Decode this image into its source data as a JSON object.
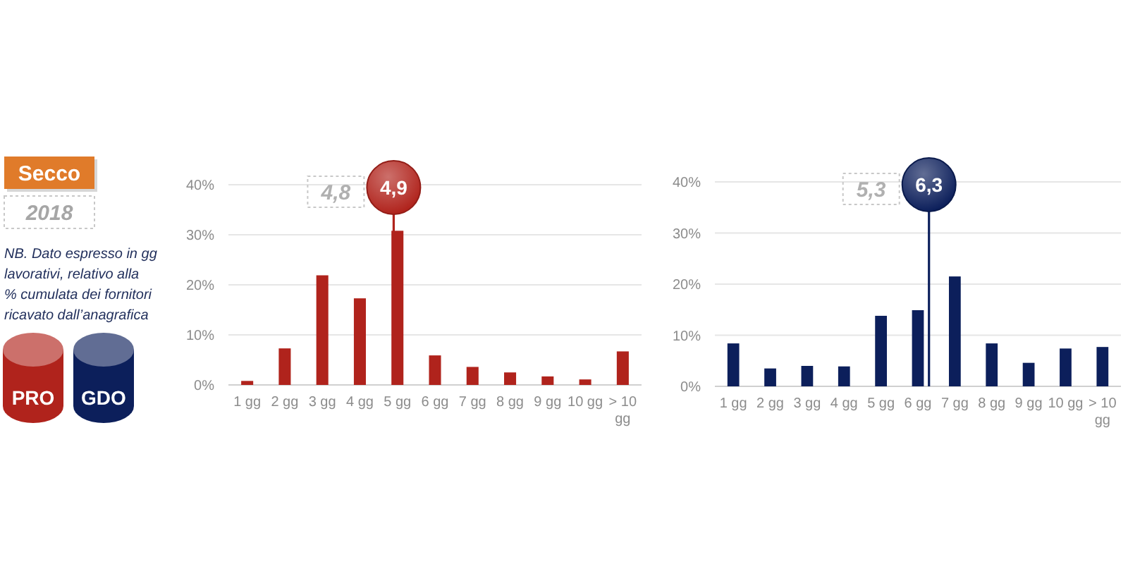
{
  "chart_data": [
    {
      "type": "other",
      "title": "Secco",
      "subtitle": "2018",
      "annotations": [
        "NB. Dato espresso in gg lavorativi, relativo alla % cumulata dei fornitori ricavato dall’anagrafica"
      ]
    },
    {
      "type": "bar",
      "x": [
        1,
        2,
        3,
        4,
        5,
        6,
        7,
        8,
        9,
        10,
        11
      ],
      "xlim": [
        0.5,
        11.5
      ],
      "xticks": [
        {
          "value": 1,
          "label": "1 gg"
        },
        {
          "value": 2,
          "label": "2 gg"
        },
        {
          "value": 3,
          "label": "3 gg"
        },
        {
          "value": 4,
          "label": "4 gg"
        },
        {
          "value": 5,
          "label": "5 gg"
        },
        {
          "value": 6,
          "label": "6 gg"
        },
        {
          "value": 7,
          "label": "7 gg"
        },
        {
          "value": 8,
          "label": "8 gg"
        },
        {
          "value": 9,
          "label": "9 gg"
        },
        {
          "value": 10,
          "label": "10 gg"
        },
        {
          "value": 11,
          "label": "> 10 gg"
        }
      ],
      "series": [
        {
          "name": "PRO",
          "color": "#b0231c",
          "values": [
            0.8,
            7.3,
            21.9,
            17.3,
            30.8,
            5.9,
            3.6,
            2.5,
            1.7,
            1.1,
            6.7
          ]
        }
      ],
      "ylim": [
        0,
        40
      ],
      "yticks": [
        {
          "value": 0,
          "label": "0%"
        },
        {
          "value": 10,
          "label": "10%"
        },
        {
          "value": 20,
          "label": "20%"
        },
        {
          "value": 30,
          "label": "30%"
        },
        {
          "value": 40,
          "label": "40%"
        }
      ],
      "grid": "y",
      "legend": "left",
      "ref_lines": [
        {
          "axis": "x",
          "value": 4.9,
          "label": "4,9",
          "color": "#b0231c"
        }
      ],
      "annotations": [
        "4,8"
      ]
    },
    {
      "type": "bar",
      "x": [
        1,
        2,
        3,
        4,
        5,
        6,
        7,
        8,
        9,
        10,
        11
      ],
      "xlim": [
        0.5,
        11.5
      ],
      "xticks": [
        {
          "value": 1,
          "label": "1 gg"
        },
        {
          "value": 2,
          "label": "2 gg"
        },
        {
          "value": 3,
          "label": "3 gg"
        },
        {
          "value": 4,
          "label": "4 gg"
        },
        {
          "value": 5,
          "label": "5 gg"
        },
        {
          "value": 6,
          "label": "6 gg"
        },
        {
          "value": 7,
          "label": "7 gg"
        },
        {
          "value": 8,
          "label": "8 gg"
        },
        {
          "value": 9,
          "label": "9 gg"
        },
        {
          "value": 10,
          "label": "10 gg"
        },
        {
          "value": 11,
          "label": "> 10 gg"
        }
      ],
      "series": [
        {
          "name": "GDO",
          "color": "#0c1f5b",
          "values": [
            8.4,
            3.5,
            4.0,
            3.9,
            13.8,
            14.9,
            21.5,
            8.4,
            4.6,
            7.4,
            7.7
          ]
        }
      ],
      "ylim": [
        0,
        40
      ],
      "yticks": [
        {
          "value": 0,
          "label": "0%"
        },
        {
          "value": 10,
          "label": "10%"
        },
        {
          "value": 20,
          "label": "20%"
        },
        {
          "value": 30,
          "label": "30%"
        },
        {
          "value": 40,
          "label": "40%"
        }
      ],
      "grid": "y",
      "legend": "left",
      "ref_lines": [
        {
          "axis": "x",
          "value": 6.3,
          "label": "6,3",
          "color": "#0c1f5b"
        }
      ],
      "annotations": [
        "5,3"
      ]
    }
  ]
}
